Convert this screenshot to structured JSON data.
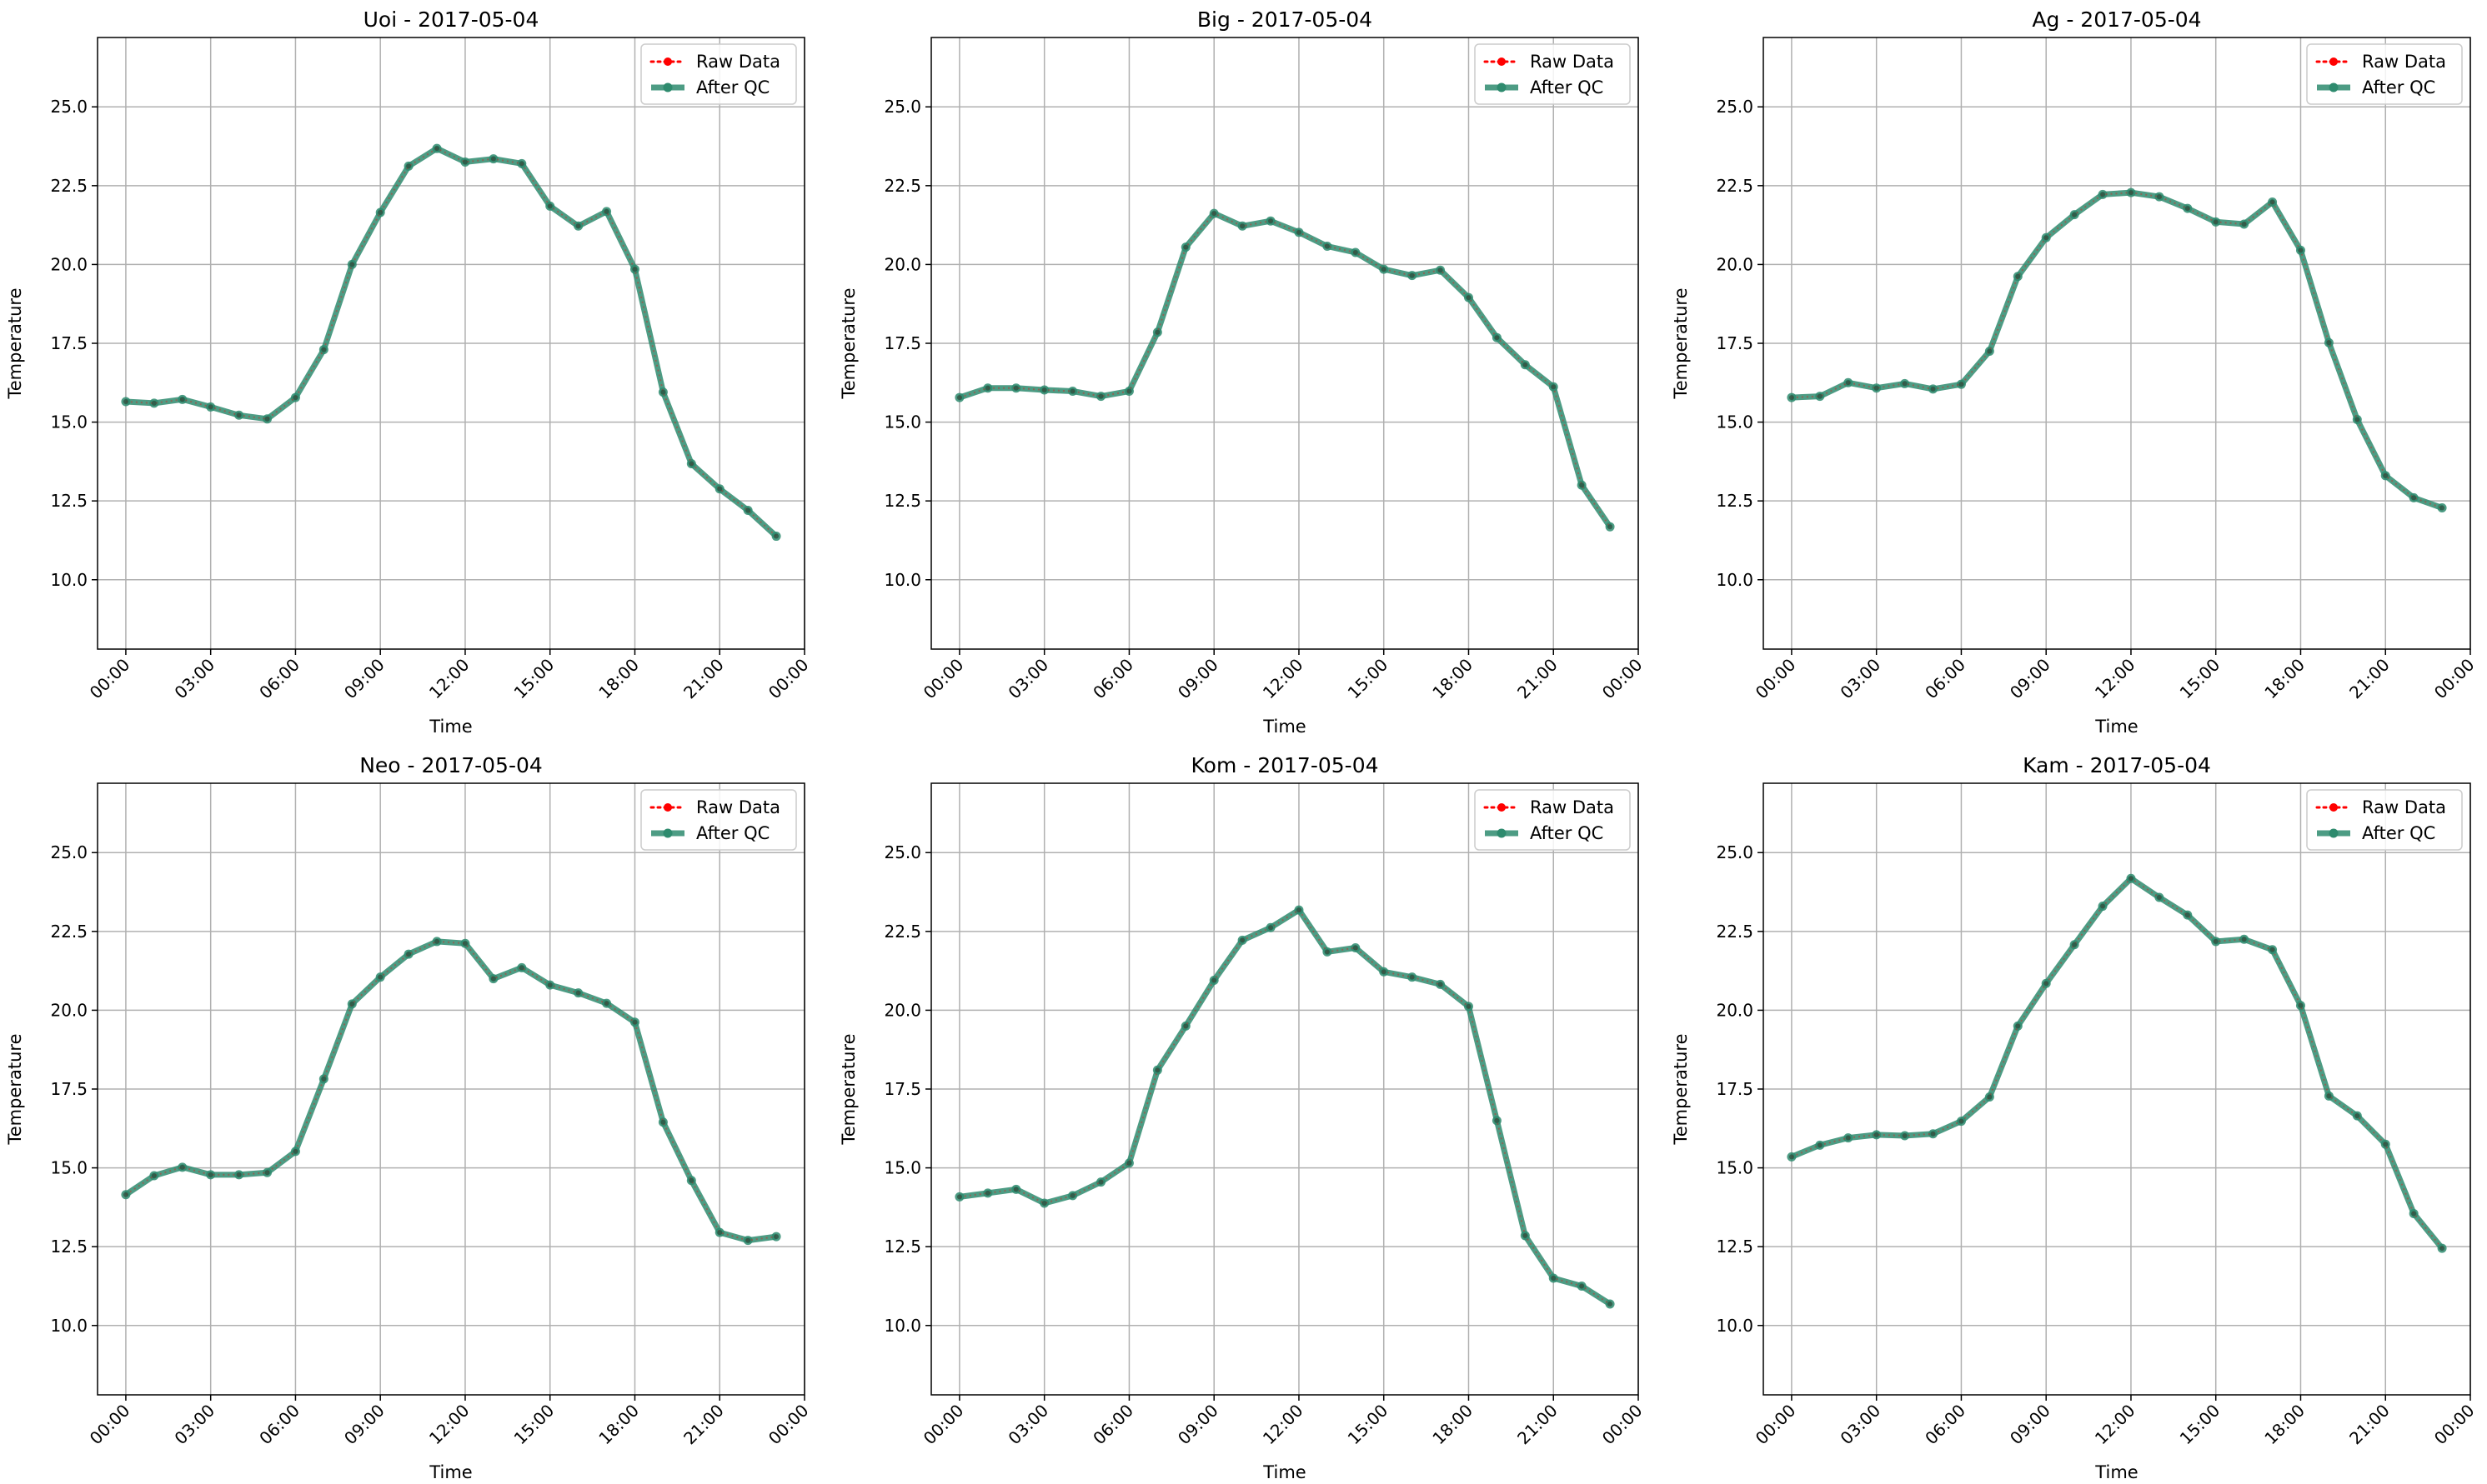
{
  "chart_data": [
    {
      "type": "line",
      "title": "Uoi - 2017-05-04",
      "xlabel": "Time",
      "ylabel": "Temperature",
      "x_unit": "hour",
      "xlim": [
        -1,
        24
      ],
      "ylim": [
        7.8,
        27.2
      ],
      "x_ticks": [
        {
          "value": 0,
          "label": "00:00"
        },
        {
          "value": 3,
          "label": "03:00"
        },
        {
          "value": 6,
          "label": "06:00"
        },
        {
          "value": 9,
          "label": "09:00"
        },
        {
          "value": 12,
          "label": "12:00"
        },
        {
          "value": 15,
          "label": "15:00"
        },
        {
          "value": 18,
          "label": "18:00"
        },
        {
          "value": 21,
          "label": "21:00"
        },
        {
          "value": 24,
          "label": "00:00"
        }
      ],
      "y_ticks": [
        {
          "value": 10,
          "label": "10.0"
        },
        {
          "value": 12.5,
          "label": "12.5"
        },
        {
          "value": 15,
          "label": "15.0"
        },
        {
          "value": 17.5,
          "label": "17.5"
        },
        {
          "value": 20,
          "label": "20.0"
        },
        {
          "value": 22.5,
          "label": "22.5"
        },
        {
          "value": 25,
          "label": "25.0"
        }
      ],
      "grid": true,
      "legend": "top-right",
      "x": [
        0,
        1,
        2,
        3,
        4,
        5,
        6,
        7,
        8,
        9,
        10,
        11,
        12,
        13,
        14,
        15,
        16,
        17,
        18,
        19,
        20,
        21,
        22,
        23
      ],
      "series": [
        {
          "name": "Raw Data",
          "style": "dotted",
          "color": "#ff0000",
          "values": [
            15.65,
            15.6,
            15.72,
            15.48,
            15.22,
            15.1,
            15.78,
            17.3,
            20.0,
            21.65,
            23.12,
            23.68,
            23.25,
            23.35,
            23.2,
            21.85,
            21.22,
            21.68,
            19.85,
            15.95,
            13.68,
            12.88,
            12.2,
            11.38
          ]
        },
        {
          "name": "After QC",
          "style": "solid",
          "color": "#2e8b6e",
          "values": [
            15.65,
            15.6,
            15.72,
            15.48,
            15.22,
            15.1,
            15.78,
            17.3,
            20.0,
            21.65,
            23.12,
            23.68,
            23.25,
            23.35,
            23.2,
            21.85,
            21.22,
            21.68,
            19.85,
            15.95,
            13.68,
            12.88,
            12.2,
            11.38
          ]
        }
      ]
    },
    {
      "type": "line",
      "title": "Big - 2017-05-04",
      "xlabel": "Time",
      "ylabel": "Temperature",
      "x_unit": "hour",
      "xlim": [
        -1,
        24
      ],
      "ylim": [
        7.8,
        27.2
      ],
      "x_ticks": [
        {
          "value": 0,
          "label": "00:00"
        },
        {
          "value": 3,
          "label": "03:00"
        },
        {
          "value": 6,
          "label": "06:00"
        },
        {
          "value": 9,
          "label": "09:00"
        },
        {
          "value": 12,
          "label": "12:00"
        },
        {
          "value": 15,
          "label": "15:00"
        },
        {
          "value": 18,
          "label": "18:00"
        },
        {
          "value": 21,
          "label": "21:00"
        },
        {
          "value": 24,
          "label": "00:00"
        }
      ],
      "y_ticks": [
        {
          "value": 10,
          "label": "10.0"
        },
        {
          "value": 12.5,
          "label": "12.5"
        },
        {
          "value": 15,
          "label": "15.0"
        },
        {
          "value": 17.5,
          "label": "17.5"
        },
        {
          "value": 20,
          "label": "20.0"
        },
        {
          "value": 22.5,
          "label": "22.5"
        },
        {
          "value": 25,
          "label": "25.0"
        }
      ],
      "grid": true,
      "legend": "top-right",
      "x": [
        0,
        1,
        2,
        3,
        4,
        5,
        6,
        7,
        8,
        9,
        10,
        11,
        12,
        13,
        14,
        15,
        16,
        17,
        18,
        19,
        20,
        21,
        22,
        23
      ],
      "series": [
        {
          "name": "Raw Data",
          "style": "dotted",
          "color": "#ff0000",
          "values": [
            15.78,
            16.08,
            16.08,
            16.02,
            15.98,
            15.82,
            15.98,
            17.85,
            20.55,
            21.62,
            21.22,
            21.38,
            21.02,
            20.58,
            20.38,
            19.85,
            19.65,
            19.82,
            18.95,
            17.68,
            16.82,
            16.12,
            13.0,
            11.68
          ]
        },
        {
          "name": "After QC",
          "style": "solid",
          "color": "#2e8b6e",
          "values": [
            15.78,
            16.08,
            16.08,
            16.02,
            15.98,
            15.82,
            15.98,
            17.85,
            20.55,
            21.62,
            21.22,
            21.38,
            21.02,
            20.58,
            20.38,
            19.85,
            19.65,
            19.82,
            18.95,
            17.68,
            16.82,
            16.12,
            13.0,
            11.68
          ]
        }
      ]
    },
    {
      "type": "line",
      "title": "Ag - 2017-05-04",
      "xlabel": "Time",
      "ylabel": "Temperature",
      "x_unit": "hour",
      "xlim": [
        -1,
        24
      ],
      "ylim": [
        7.8,
        27.2
      ],
      "x_ticks": [
        {
          "value": 0,
          "label": "00:00"
        },
        {
          "value": 3,
          "label": "03:00"
        },
        {
          "value": 6,
          "label": "06:00"
        },
        {
          "value": 9,
          "label": "09:00"
        },
        {
          "value": 12,
          "label": "12:00"
        },
        {
          "value": 15,
          "label": "15:00"
        },
        {
          "value": 18,
          "label": "18:00"
        },
        {
          "value": 21,
          "label": "21:00"
        },
        {
          "value": 24,
          "label": "00:00"
        }
      ],
      "y_ticks": [
        {
          "value": 10,
          "label": "10.0"
        },
        {
          "value": 12.5,
          "label": "12.5"
        },
        {
          "value": 15,
          "label": "15.0"
        },
        {
          "value": 17.5,
          "label": "17.5"
        },
        {
          "value": 20,
          "label": "20.0"
        },
        {
          "value": 22.5,
          "label": "22.5"
        },
        {
          "value": 25,
          "label": "25.0"
        }
      ],
      "grid": true,
      "legend": "top-right",
      "x": [
        0,
        1,
        2,
        3,
        4,
        5,
        6,
        7,
        8,
        9,
        10,
        11,
        12,
        13,
        14,
        15,
        16,
        17,
        18,
        19,
        20,
        21,
        22,
        23
      ],
      "series": [
        {
          "name": "Raw Data",
          "style": "dotted",
          "color": "#ff0000",
          "values": [
            15.78,
            15.82,
            16.25,
            16.08,
            16.22,
            16.05,
            16.2,
            17.25,
            19.62,
            20.85,
            21.58,
            22.22,
            22.28,
            22.15,
            21.78,
            21.35,
            21.28,
            21.98,
            20.45,
            17.52,
            15.08,
            13.3,
            12.6,
            12.28
          ]
        },
        {
          "name": "After QC",
          "style": "solid",
          "color": "#2e8b6e",
          "values": [
            15.78,
            15.82,
            16.25,
            16.08,
            16.22,
            16.05,
            16.2,
            17.25,
            19.62,
            20.85,
            21.58,
            22.22,
            22.28,
            22.15,
            21.78,
            21.35,
            21.28,
            21.98,
            20.45,
            17.52,
            15.08,
            13.3,
            12.6,
            12.28
          ]
        }
      ]
    },
    {
      "type": "line",
      "title": "Neo - 2017-05-04",
      "xlabel": "Time",
      "ylabel": "Temperature",
      "x_unit": "hour",
      "xlim": [
        -1,
        24
      ],
      "ylim": [
        7.8,
        27.2
      ],
      "x_ticks": [
        {
          "value": 0,
          "label": "00:00"
        },
        {
          "value": 3,
          "label": "03:00"
        },
        {
          "value": 6,
          "label": "06:00"
        },
        {
          "value": 9,
          "label": "09:00"
        },
        {
          "value": 12,
          "label": "12:00"
        },
        {
          "value": 15,
          "label": "15:00"
        },
        {
          "value": 18,
          "label": "18:00"
        },
        {
          "value": 21,
          "label": "21:00"
        },
        {
          "value": 24,
          "label": "00:00"
        }
      ],
      "y_ticks": [
        {
          "value": 10,
          "label": "10.0"
        },
        {
          "value": 12.5,
          "label": "12.5"
        },
        {
          "value": 15,
          "label": "15.0"
        },
        {
          "value": 17.5,
          "label": "17.5"
        },
        {
          "value": 20,
          "label": "20.0"
        },
        {
          "value": 22.5,
          "label": "22.5"
        },
        {
          "value": 25,
          "label": "25.0"
        }
      ],
      "grid": true,
      "legend": "top-right",
      "x": [
        0,
        1,
        2,
        3,
        4,
        5,
        6,
        7,
        8,
        9,
        10,
        11,
        12,
        13,
        14,
        15,
        16,
        17,
        18,
        19,
        20,
        21,
        22,
        23
      ],
      "series": [
        {
          "name": "Raw Data",
          "style": "dotted",
          "color": "#ff0000",
          "values": [
            14.15,
            14.75,
            15.02,
            14.78,
            14.78,
            14.85,
            15.52,
            17.82,
            20.2,
            21.05,
            21.78,
            22.18,
            22.12,
            21.0,
            21.35,
            20.8,
            20.55,
            20.22,
            19.62,
            16.45,
            14.6,
            12.95,
            12.7,
            12.82
          ]
        },
        {
          "name": "After QC",
          "style": "solid",
          "color": "#2e8b6e",
          "values": [
            14.15,
            14.75,
            15.02,
            14.78,
            14.78,
            14.85,
            15.52,
            17.82,
            20.2,
            21.05,
            21.78,
            22.18,
            22.12,
            21.0,
            21.35,
            20.8,
            20.55,
            20.22,
            19.62,
            16.45,
            14.6,
            12.95,
            12.7,
            12.82
          ]
        }
      ]
    },
    {
      "type": "line",
      "title": "Kom - 2017-05-04",
      "xlabel": "Time",
      "ylabel": "Temperature",
      "x_unit": "hour",
      "xlim": [
        -1,
        24
      ],
      "ylim": [
        7.8,
        27.2
      ],
      "x_ticks": [
        {
          "value": 0,
          "label": "00:00"
        },
        {
          "value": 3,
          "label": "03:00"
        },
        {
          "value": 6,
          "label": "06:00"
        },
        {
          "value": 9,
          "label": "09:00"
        },
        {
          "value": 12,
          "label": "12:00"
        },
        {
          "value": 15,
          "label": "15:00"
        },
        {
          "value": 18,
          "label": "18:00"
        },
        {
          "value": 21,
          "label": "21:00"
        },
        {
          "value": 24,
          "label": "00:00"
        }
      ],
      "y_ticks": [
        {
          "value": 10,
          "label": "10.0"
        },
        {
          "value": 12.5,
          "label": "12.5"
        },
        {
          "value": 15,
          "label": "15.0"
        },
        {
          "value": 17.5,
          "label": "17.5"
        },
        {
          "value": 20,
          "label": "20.0"
        },
        {
          "value": 22.5,
          "label": "22.5"
        },
        {
          "value": 25,
          "label": "25.0"
        }
      ],
      "grid": true,
      "legend": "top-right",
      "x": [
        0,
        1,
        2,
        3,
        4,
        5,
        6,
        7,
        8,
        9,
        10,
        11,
        12,
        13,
        14,
        15,
        16,
        17,
        18,
        19,
        20,
        21,
        22,
        23
      ],
      "series": [
        {
          "name": "Raw Data",
          "style": "dotted",
          "color": "#ff0000",
          "values": [
            14.08,
            14.2,
            14.32,
            13.88,
            14.12,
            14.55,
            15.15,
            18.1,
            19.5,
            20.95,
            22.22,
            22.62,
            23.18,
            21.85,
            21.98,
            21.22,
            21.05,
            20.82,
            20.12,
            16.5,
            12.85,
            11.5,
            11.25,
            10.68
          ]
        },
        {
          "name": "After QC",
          "style": "solid",
          "color": "#2e8b6e",
          "values": [
            14.08,
            14.2,
            14.32,
            13.88,
            14.12,
            14.55,
            15.15,
            18.1,
            19.5,
            20.95,
            22.22,
            22.62,
            23.18,
            21.85,
            21.98,
            21.22,
            21.05,
            20.82,
            20.12,
            16.5,
            12.85,
            11.5,
            11.25,
            10.68
          ]
        }
      ]
    },
    {
      "type": "line",
      "title": "Kam - 2017-05-04",
      "xlabel": "Time",
      "ylabel": "Temperature",
      "x_unit": "hour",
      "xlim": [
        -1,
        24
      ],
      "ylim": [
        7.8,
        27.2
      ],
      "x_ticks": [
        {
          "value": 0,
          "label": "00:00"
        },
        {
          "value": 3,
          "label": "03:00"
        },
        {
          "value": 6,
          "label": "06:00"
        },
        {
          "value": 9,
          "label": "09:00"
        },
        {
          "value": 12,
          "label": "12:00"
        },
        {
          "value": 15,
          "label": "15:00"
        },
        {
          "value": 18,
          "label": "18:00"
        },
        {
          "value": 21,
          "label": "21:00"
        },
        {
          "value": 24,
          "label": "00:00"
        }
      ],
      "y_ticks": [
        {
          "value": 10,
          "label": "10.0"
        },
        {
          "value": 12.5,
          "label": "12.5"
        },
        {
          "value": 15,
          "label": "15.0"
        },
        {
          "value": 17.5,
          "label": "17.5"
        },
        {
          "value": 20,
          "label": "20.0"
        },
        {
          "value": 22.5,
          "label": "22.5"
        },
        {
          "value": 25,
          "label": "25.0"
        }
      ],
      "grid": true,
      "legend": "top-right",
      "x": [
        0,
        1,
        2,
        3,
        4,
        5,
        6,
        7,
        8,
        9,
        10,
        11,
        12,
        13,
        14,
        15,
        16,
        17,
        18,
        19,
        20,
        21,
        22,
        23
      ],
      "series": [
        {
          "name": "Raw Data",
          "style": "dotted",
          "color": "#ff0000",
          "values": [
            15.35,
            15.72,
            15.95,
            16.05,
            16.02,
            16.08,
            16.48,
            17.25,
            19.5,
            20.85,
            22.08,
            23.3,
            24.18,
            23.58,
            23.02,
            22.18,
            22.25,
            21.92,
            20.15,
            17.28,
            16.65,
            15.75,
            13.55,
            12.45
          ]
        },
        {
          "name": "After QC",
          "style": "solid",
          "color": "#2e8b6e",
          "values": [
            15.35,
            15.72,
            15.95,
            16.05,
            16.02,
            16.08,
            16.48,
            17.25,
            19.5,
            20.85,
            22.08,
            23.3,
            24.18,
            23.58,
            23.02,
            22.18,
            22.25,
            21.92,
            20.15,
            17.28,
            16.65,
            15.75,
            13.55,
            12.45
          ]
        }
      ]
    }
  ]
}
